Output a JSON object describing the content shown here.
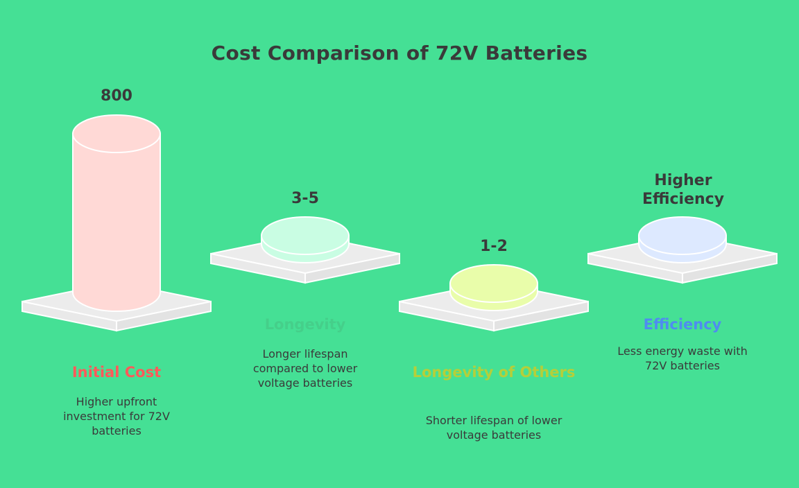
{
  "title": "Cost Comparison of 72V Batteries",
  "items": [
    {
      "value": "800",
      "label": "Initial Cost",
      "description": "Higher upfront investment for 72V batteries",
      "color": "#ff5a5a",
      "fill": "#ffd9d6"
    },
    {
      "value": "3-5",
      "label": "Longevity",
      "description": "Longer lifespan compared to lower voltage batteries",
      "color": "#45cf8a",
      "fill": "#c9fde3"
    },
    {
      "value": "1-2",
      "label": "Longevity of Others",
      "description": "Shorter lifespan of lower voltage batteries",
      "color": "#b5cf3a",
      "fill": "#e9fdaa"
    },
    {
      "value": "Higher Efficiency",
      "label": "Efficiency",
      "description": "Less energy waste with 72V batteries",
      "color": "#4f8cf0",
      "fill": "#dde9ff"
    }
  ]
}
